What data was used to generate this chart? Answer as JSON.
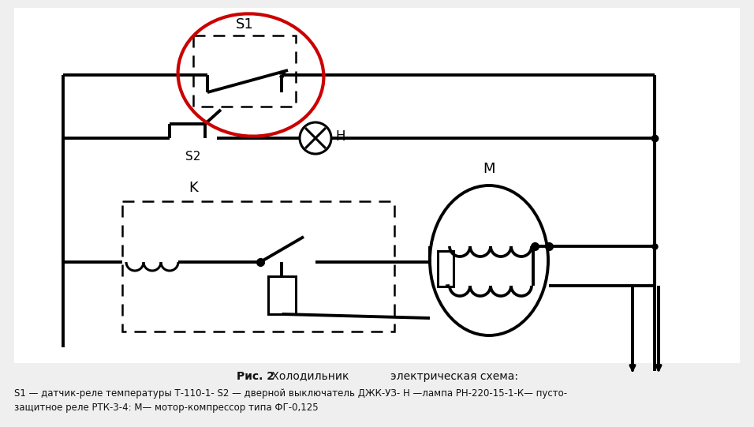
{
  "background_color": "#efefef",
  "line_color": "#000000",
  "red_circle_color": "#cc0000",
  "caption_bold": "Рис. 2",
  "caption_normal": " Холодильник            электрическая схема:",
  "bottom_text_line1": "S1 — датчик-реле температуры Т-110-1- S2 — дверной выключатель ДЖК-УЗ- Н —лампа РН-220-15-1-К— пусто-",
  "bottom_text_line2": "защитное реле РТК-3-4: М— мотор-компрессор типа ФГ-0,125",
  "label_S1": "S1",
  "label_S2": "S2",
  "label_H": "H",
  "label_K": "K",
  "label_M": "M",
  "lw": 2.2,
  "lw_thick": 2.8
}
